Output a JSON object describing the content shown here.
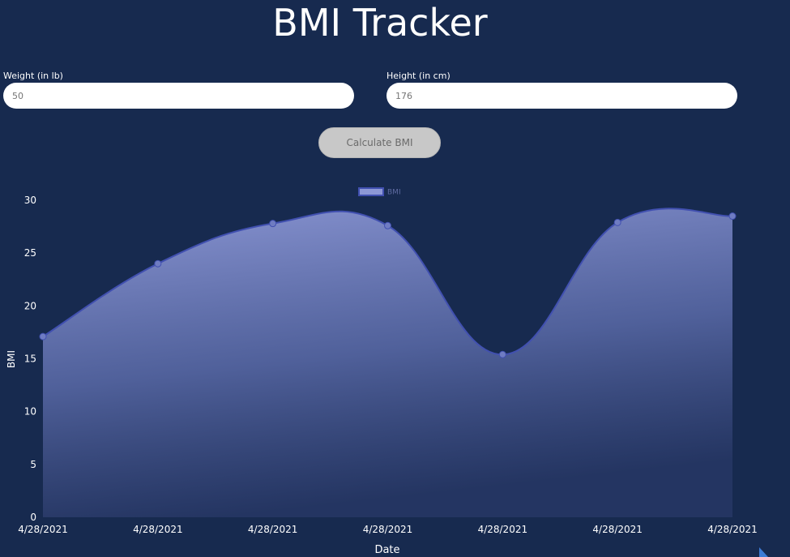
{
  "app": {
    "title": "BMI Tracker"
  },
  "form": {
    "weight_label": "Weight (in lb)",
    "weight_placeholder": "50",
    "height_label": "Height (in cm)",
    "height_placeholder": "176",
    "calculate_label": "Calculate BMI"
  },
  "colors": {
    "background": "#172a4f",
    "series_line": "#4150b0",
    "series_fill_top": "#8d98d6",
    "button_bg": "#c8c8c8"
  },
  "chart_data": {
    "type": "area",
    "x": [
      "4/28/2021",
      "4/28/2021",
      "4/28/2021",
      "4/28/2021",
      "4/28/2021",
      "4/28/2021",
      "4/28/2021"
    ],
    "series": [
      {
        "name": "BMI",
        "values": [
          17.1,
          24.0,
          27.8,
          27.6,
          15.4,
          27.9,
          28.5
        ]
      }
    ],
    "xlabel": "Date",
    "ylabel": "BMI",
    "ylim": [
      0,
      30
    ],
    "yticks": [
      "0",
      "5",
      "10",
      "15",
      "20",
      "25",
      "30"
    ],
    "grid": false,
    "legend": "top-center"
  }
}
